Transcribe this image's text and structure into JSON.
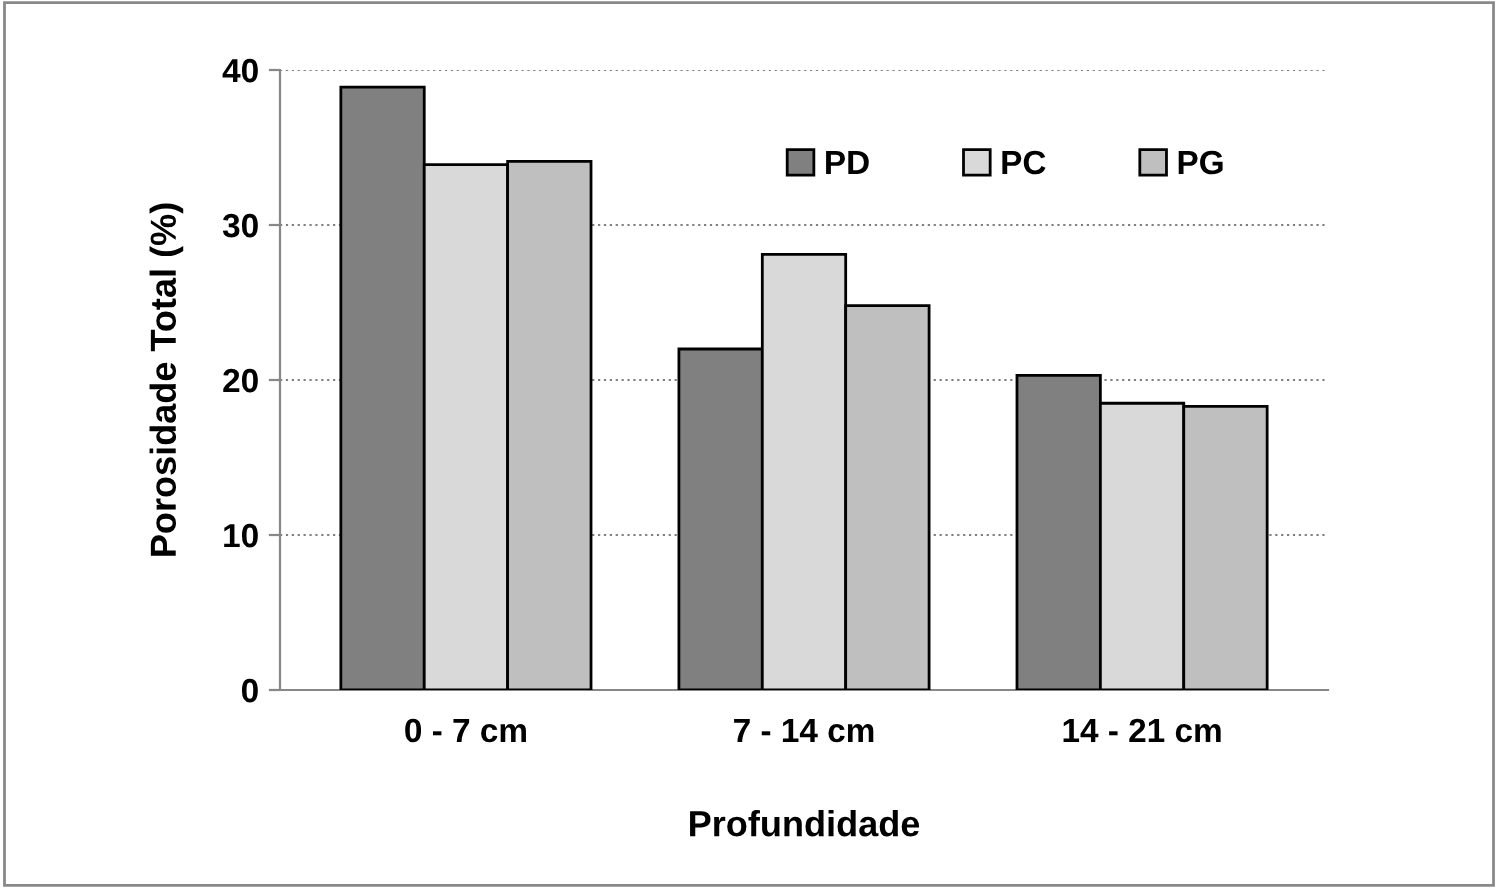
{
  "chart_data": {
    "type": "bar",
    "xlabel": "Profundidade",
    "ylabel": "Porosidade Total (%)",
    "categories": [
      "0 - 7 cm",
      "7 - 14 cm",
      "14 - 21 cm"
    ],
    "series": [
      {
        "name": "PD",
        "color": "#808080",
        "values": [
          38.9,
          22.0,
          20.3
        ]
      },
      {
        "name": "PC",
        "color": "#d9d9d9",
        "values": [
          33.9,
          28.1,
          18.5
        ]
      },
      {
        "name": "PG",
        "color": "#bfbfbf",
        "values": [
          34.1,
          24.8,
          18.3
        ]
      }
    ],
    "ylim": [
      0,
      40
    ],
    "yticks": [
      0,
      10,
      20,
      30,
      40
    ],
    "grid": "y",
    "legend": "top right"
  }
}
